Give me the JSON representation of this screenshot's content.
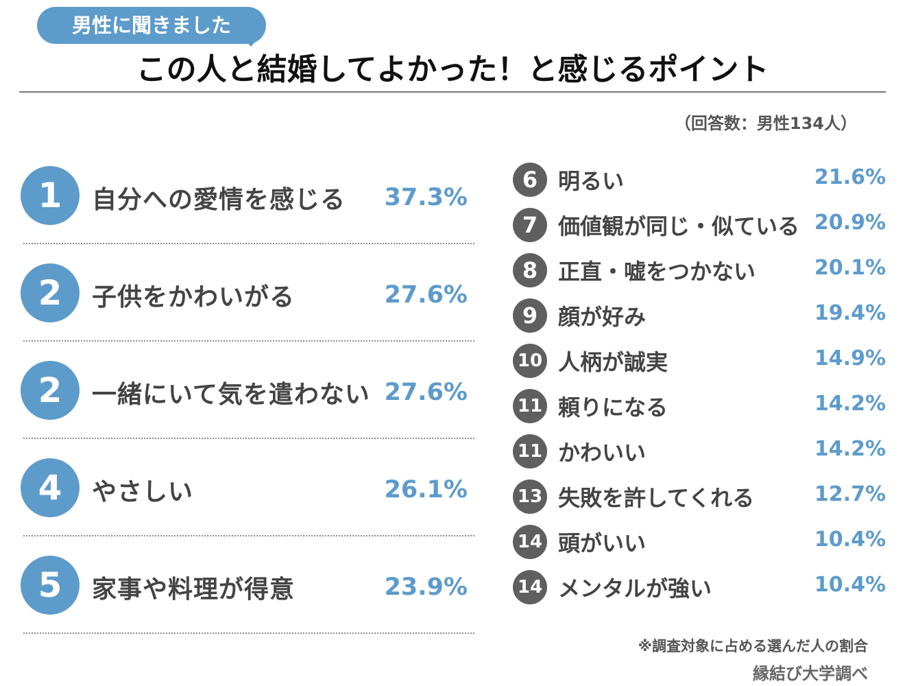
{
  "header": {
    "badge": "男性に聞きました",
    "title": "この人と結婚してよかった！と感じるポイント",
    "respondents": "（回答数：男性134人）"
  },
  "chart_data": {
    "type": "table",
    "title": "この人と結婚してよかった！と感じるポイント",
    "unit": "%",
    "rows": [
      {
        "rank": "1",
        "label": "自分への愛情を感じる",
        "value": 37.3,
        "value_label": "37.3%"
      },
      {
        "rank": "2",
        "label": "子供をかわいがる",
        "value": 27.6,
        "value_label": "27.6%"
      },
      {
        "rank": "2",
        "label": "一緒にいて気を遣わない",
        "value": 27.6,
        "value_label": "27.6%"
      },
      {
        "rank": "4",
        "label": "やさしい",
        "value": 26.1,
        "value_label": "26.1%"
      },
      {
        "rank": "5",
        "label": "家事や料理が得意",
        "value": 23.9,
        "value_label": "23.9%"
      },
      {
        "rank": "6",
        "label": "明るい",
        "value": 21.6,
        "value_label": "21.6%"
      },
      {
        "rank": "7",
        "label": "価値観が同じ・似ている",
        "value": 20.9,
        "value_label": "20.9%"
      },
      {
        "rank": "8",
        "label": "正直・嘘をつかない",
        "value": 20.1,
        "value_label": "20.1%"
      },
      {
        "rank": "9",
        "label": "顔が好み",
        "value": 19.4,
        "value_label": "19.4%"
      },
      {
        "rank": "10",
        "label": "人柄が誠実",
        "value": 14.9,
        "value_label": "14.9%"
      },
      {
        "rank": "11",
        "label": "頼りになる",
        "value": 14.2,
        "value_label": "14.2%"
      },
      {
        "rank": "11",
        "label": "かわいい",
        "value": 14.2,
        "value_label": "14.2%"
      },
      {
        "rank": "13",
        "label": "失敗を許してくれる",
        "value": 12.7,
        "value_label": "12.7%"
      },
      {
        "rank": "14",
        "label": "頭がいい",
        "value": 10.4,
        "value_label": "10.4%"
      },
      {
        "rank": "14",
        "label": "メンタルが強い",
        "value": 10.4,
        "value_label": "10.4%"
      }
    ]
  },
  "footer": {
    "note": "※調査対象に占める選んだ人の割合",
    "source": "縁結び大学調べ"
  },
  "colors": {
    "accent": "#5d9bcb",
    "rank_circle_secondary": "#5f5f5f",
    "text": "#444444"
  }
}
